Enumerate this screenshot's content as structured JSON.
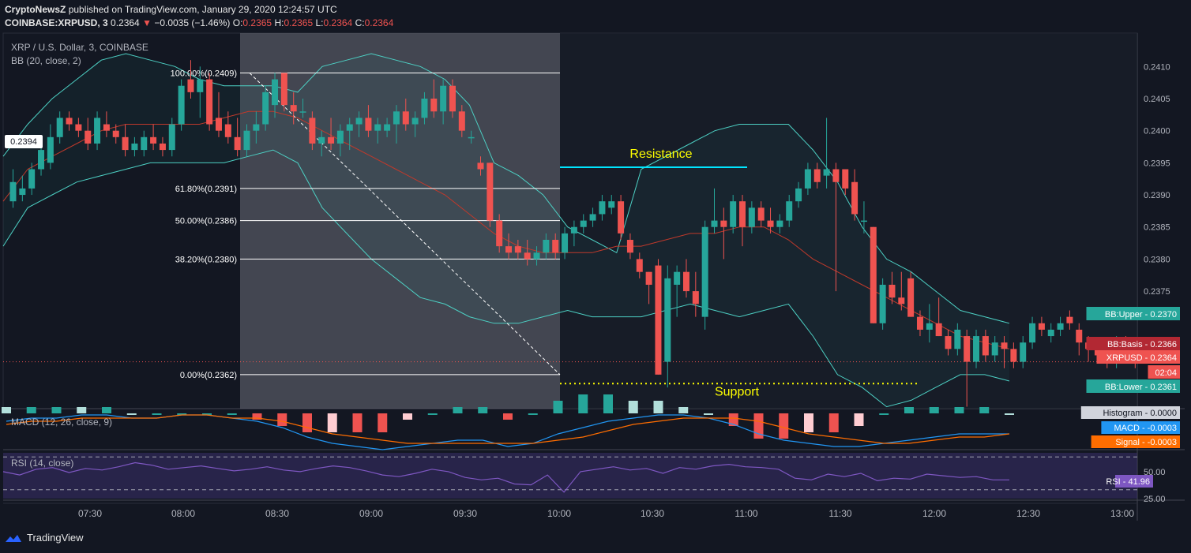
{
  "header": {
    "publisher": "CryptoNewsZ",
    "published_text": "published on TradingView.com, January 29, 2020 12:24:57 UTC",
    "symbol": "COINBASE:XRPUSD, 3",
    "last": "0.2364",
    "change": "−0.0035 (−1.46%)",
    "ohlc": {
      "o_label": "O:",
      "o": "0.2365",
      "h_label": "H:",
      "h": "0.2365",
      "l_label": "L:",
      "l": "0.2364",
      "c_label": "C:",
      "c": "0.2364"
    }
  },
  "main_pane": {
    "title": "XRP / U.S. Dollar, 3, COINBASE",
    "indicator": "BB (20, close, 2)",
    "left_price_tag": "0.2394"
  },
  "macd_pane": {
    "title": "MACD (12, 26, close, 9)"
  },
  "rsi_pane": {
    "title": "RSI (14, close)"
  },
  "footer": {
    "brand": "TradingView"
  },
  "colors": {
    "background": "#131722",
    "up": "#26a69a",
    "down": "#ef5350",
    "bb_band": "#4dd0c4",
    "bb_basis": "#c0392b",
    "resistance": "#00e5ff",
    "support": "#ffff00",
    "annotation_text": "#ffff00",
    "macd_line": "#2196f3",
    "signal_line": "#ff6d00",
    "rsi": "#7e57c2"
  },
  "chart_data": {
    "type": "candlestick",
    "symbol": "COINBASE:XRPUSD",
    "interval": "3",
    "x_ticks": [
      "07:30",
      "08:00",
      "08:30",
      "09:00",
      "09:30",
      "10:00",
      "10:30",
      "11:00",
      "11:30",
      "12:00",
      "12:30",
      "13:00"
    ],
    "y_ticks": [
      "0.2410",
      "0.2405",
      "0.2400",
      "0.2395",
      "0.2390",
      "0.2385",
      "0.2380",
      "0.2375"
    ],
    "ylim": [
      0.23567,
      0.24152
    ],
    "grid": false,
    "ohlc": [
      [
        0.2389,
        0.2394,
        0.2388,
        0.2392
      ],
      [
        0.239,
        0.2393,
        0.2389,
        0.2391
      ],
      [
        0.2391,
        0.2395,
        0.239,
        0.2394
      ],
      [
        0.2394,
        0.2398,
        0.2393,
        0.2397
      ],
      [
        0.2395,
        0.2401,
        0.2394,
        0.2399
      ],
      [
        0.2399,
        0.2403,
        0.2398,
        0.2402
      ],
      [
        0.2402,
        0.2403,
        0.24,
        0.2401
      ],
      [
        0.2401,
        0.2402,
        0.2399,
        0.24
      ],
      [
        0.24,
        0.2402,
        0.2397,
        0.2398
      ],
      [
        0.2398,
        0.2403,
        0.2397,
        0.2402
      ],
      [
        0.2401,
        0.2403,
        0.2399,
        0.24
      ],
      [
        0.24,
        0.2401,
        0.2398,
        0.2399
      ],
      [
        0.2399,
        0.2401,
        0.2396,
        0.2397
      ],
      [
        0.2397,
        0.2399,
        0.2396,
        0.2398
      ],
      [
        0.2397,
        0.24,
        0.2396,
        0.2399
      ],
      [
        0.2399,
        0.2401,
        0.2397,
        0.2398
      ],
      [
        0.2398,
        0.2399,
        0.2396,
        0.2397
      ],
      [
        0.2397,
        0.2402,
        0.2396,
        0.2401
      ],
      [
        0.2401,
        0.2408,
        0.24,
        0.2407
      ],
      [
        0.2408,
        0.2411,
        0.2405,
        0.2406
      ],
      [
        0.2406,
        0.241,
        0.2402,
        0.2408
      ],
      [
        0.2408,
        0.2409,
        0.24,
        0.2401
      ],
      [
        0.2402,
        0.2406,
        0.2399,
        0.24
      ],
      [
        0.2401,
        0.2403,
        0.2398,
        0.2399
      ],
      [
        0.2399,
        0.2402,
        0.2396,
        0.2397
      ],
      [
        0.2397,
        0.2401,
        0.2396,
        0.24
      ],
      [
        0.24,
        0.2403,
        0.2398,
        0.2401
      ],
      [
        0.2401,
        0.2407,
        0.24,
        0.2406
      ],
      [
        0.2404,
        0.2409,
        0.2402,
        0.2408
      ],
      [
        0.2409,
        0.2409,
        0.2403,
        0.2404
      ],
      [
        0.2404,
        0.2406,
        0.2401,
        0.2403
      ],
      [
        0.2403,
        0.2405,
        0.2402,
        0.2403
      ],
      [
        0.2402,
        0.2403,
        0.2397,
        0.2398
      ],
      [
        0.2398,
        0.24,
        0.2396,
        0.2399
      ],
      [
        0.2399,
        0.2402,
        0.2397,
        0.2398
      ],
      [
        0.2398,
        0.2401,
        0.2396,
        0.24
      ],
      [
        0.24,
        0.2402,
        0.2397,
        0.2401
      ],
      [
        0.2401,
        0.2403,
        0.2399,
        0.2402
      ],
      [
        0.2402,
        0.2404,
        0.2399,
        0.24
      ],
      [
        0.24,
        0.2402,
        0.2398,
        0.2401
      ],
      [
        0.24,
        0.2402,
        0.2399,
        0.2401
      ],
      [
        0.2401,
        0.2404,
        0.2398,
        0.2403
      ],
      [
        0.2403,
        0.2405,
        0.24,
        0.2401
      ],
      [
        0.2401,
        0.2403,
        0.2399,
        0.2402
      ],
      [
        0.2402,
        0.2406,
        0.2401,
        0.2405
      ],
      [
        0.2405,
        0.2408,
        0.2402,
        0.2403
      ],
      [
        0.2403,
        0.2408,
        0.2401,
        0.2407
      ],
      [
        0.2407,
        0.2408,
        0.2402,
        0.2403
      ],
      [
        0.2403,
        0.2404,
        0.2399,
        0.24
      ],
      [
        0.2399,
        0.24,
        0.2398,
        0.2399
      ],
      [
        0.2395,
        0.2396,
        0.2393,
        0.2394
      ],
      [
        0.2395,
        0.2395,
        0.2385,
        0.2386
      ],
      [
        0.2386,
        0.2387,
        0.2381,
        0.2382
      ],
      [
        0.2382,
        0.2384,
        0.238,
        0.2381
      ],
      [
        0.2382,
        0.2383,
        0.238,
        0.2381
      ],
      [
        0.2381,
        0.2383,
        0.2379,
        0.238
      ],
      [
        0.238,
        0.2382,
        0.2379,
        0.2381
      ],
      [
        0.2381,
        0.2384,
        0.238,
        0.2383
      ],
      [
        0.2383,
        0.2384,
        0.238,
        0.2381
      ],
      [
        0.2381,
        0.2385,
        0.238,
        0.2384
      ],
      [
        0.2384,
        0.2386,
        0.2382,
        0.2385
      ],
      [
        0.2385,
        0.2387,
        0.2384,
        0.2386
      ],
      [
        0.2386,
        0.2388,
        0.2385,
        0.2387
      ],
      [
        0.2387,
        0.239,
        0.2386,
        0.2389
      ],
      [
        0.2388,
        0.239,
        0.2387,
        0.2389
      ],
      [
        0.2389,
        0.239,
        0.2383,
        0.2384
      ],
      [
        0.2383,
        0.2384,
        0.238,
        0.2381
      ],
      [
        0.238,
        0.2381,
        0.2377,
        0.2378
      ],
      [
        0.2378,
        0.2378,
        0.2373,
        0.2376
      ],
      [
        0.2379,
        0.238,
        0.2362,
        0.2362
      ],
      [
        0.2364,
        0.2379,
        0.236,
        0.2377
      ],
      [
        0.2376,
        0.2379,
        0.2371,
        0.2378
      ],
      [
        0.2378,
        0.238,
        0.2374,
        0.2375
      ],
      [
        0.2375,
        0.2378,
        0.2371,
        0.2373
      ],
      [
        0.2371,
        0.2386,
        0.2369,
        0.2385
      ],
      [
        0.2385,
        0.2391,
        0.2384,
        0.2386
      ],
      [
        0.2386,
        0.2388,
        0.238,
        0.2385
      ],
      [
        0.2385,
        0.239,
        0.2384,
        0.2389
      ],
      [
        0.2389,
        0.239,
        0.2382,
        0.2385
      ],
      [
        0.2385,
        0.2389,
        0.2384,
        0.2388
      ],
      [
        0.2388,
        0.2389,
        0.2385,
        0.2386
      ],
      [
        0.2386,
        0.2388,
        0.2384,
        0.2385
      ],
      [
        0.2385,
        0.2387,
        0.2384,
        0.2386
      ],
      [
        0.2386,
        0.239,
        0.2385,
        0.2389
      ],
      [
        0.2389,
        0.2392,
        0.2388,
        0.2391
      ],
      [
        0.2391,
        0.2395,
        0.239,
        0.2394
      ],
      [
        0.2394,
        0.2395,
        0.2391,
        0.2392
      ],
      [
        0.2393,
        0.2402,
        0.2391,
        0.2394
      ],
      [
        0.2394,
        0.2395,
        0.2375,
        0.2392
      ],
      [
        0.2394,
        0.2394,
        0.239,
        0.2391
      ],
      [
        0.2392,
        0.2394,
        0.2386,
        0.2387
      ],
      [
        0.2386,
        0.2389,
        0.2384,
        0.2386
      ],
      [
        0.2385,
        0.2385,
        0.237,
        0.237
      ],
      [
        0.237,
        0.2377,
        0.2369,
        0.2376
      ],
      [
        0.2376,
        0.2378,
        0.2373,
        0.2374
      ],
      [
        0.2374,
        0.2378,
        0.2372,
        0.2373
      ],
      [
        0.2377,
        0.2378,
        0.2371,
        0.2371
      ],
      [
        0.2371,
        0.2372,
        0.2368,
        0.2369
      ],
      [
        0.2369,
        0.2373,
        0.2367,
        0.237
      ],
      [
        0.237,
        0.2374,
        0.2368,
        0.2368
      ],
      [
        0.2368,
        0.2369,
        0.2365,
        0.2366
      ],
      [
        0.2366,
        0.237,
        0.2365,
        0.2369
      ],
      [
        0.2368,
        0.2369,
        0.2357,
        0.2364
      ],
      [
        0.2364,
        0.2369,
        0.2363,
        0.2368
      ],
      [
        0.2368,
        0.2369,
        0.2364,
        0.2365
      ],
      [
        0.2365,
        0.2368,
        0.2364,
        0.2367
      ],
      [
        0.2367,
        0.2368,
        0.2363,
        0.2366
      ],
      [
        0.2366,
        0.2367,
        0.2363,
        0.2364
      ],
      [
        0.2364,
        0.2368,
        0.2363,
        0.2367
      ],
      [
        0.2367,
        0.2371,
        0.2366,
        0.237
      ],
      [
        0.237,
        0.2371,
        0.2368,
        0.2369
      ],
      [
        0.2368,
        0.237,
        0.2367,
        0.2369
      ],
      [
        0.2369,
        0.2371,
        0.2368,
        0.237
      ],
      [
        0.2371,
        0.2372,
        0.2369,
        0.237
      ],
      [
        0.2369,
        0.237,
        0.2365,
        0.2367
      ],
      [
        0.2367,
        0.2368,
        0.2364,
        0.2366
      ],
      [
        0.2366,
        0.2367,
        0.2364,
        0.2365
      ],
      [
        0.2365,
        0.2366,
        0.2363,
        0.2364
      ],
      [
        0.2364,
        0.2368,
        0.2363,
        0.2367
      ],
      [
        0.2367,
        0.2368,
        0.2364,
        0.2365
      ],
      [
        0.2365,
        0.2366,
        0.2363,
        0.2364
      ],
      [
        0.2365,
        0.2366,
        0.2364,
        0.2364
      ]
    ],
    "bollinger": {
      "label": "BB (20, close, 2)",
      "upper": [
        0.2396,
        0.2401,
        0.2405,
        0.2408,
        0.2411,
        0.2412,
        0.2411,
        0.241,
        0.2408,
        0.2407,
        0.2407,
        0.2407,
        0.2406,
        0.241,
        0.2411,
        0.2412,
        0.2411,
        0.241,
        0.2408,
        0.2404,
        0.2395,
        0.2393,
        0.239,
        0.2385,
        0.2383,
        0.2381,
        0.2394,
        0.2396,
        0.2398,
        0.24,
        0.2401,
        0.2401,
        0.2401,
        0.2397,
        0.2392,
        0.2385,
        0.238,
        0.2378,
        0.2375,
        0.2372,
        0.2371,
        0.237
      ],
      "basis": [
        0.2389,
        0.2394,
        0.2396,
        0.2398,
        0.24,
        0.2401,
        0.2401,
        0.2401,
        0.2401,
        0.2402,
        0.2403,
        0.2403,
        0.2402,
        0.24,
        0.2398,
        0.2396,
        0.2394,
        0.2392,
        0.239,
        0.2387,
        0.2384,
        0.2382,
        0.2381,
        0.2381,
        0.2381,
        0.2382,
        0.2382,
        0.2383,
        0.2384,
        0.2384,
        0.2385,
        0.2385,
        0.2383,
        0.238,
        0.2378,
        0.2376,
        0.2374,
        0.2372,
        0.237,
        0.2368,
        0.2367,
        0.2366
      ],
      "lower": [
        0.2382,
        0.2388,
        0.239,
        0.2392,
        0.2393,
        0.2394,
        0.2395,
        0.2395,
        0.2395,
        0.2395,
        0.2396,
        0.2397,
        0.2395,
        0.2388,
        0.2384,
        0.238,
        0.2377,
        0.2374,
        0.2373,
        0.2371,
        0.237,
        0.237,
        0.2371,
        0.2372,
        0.2371,
        0.2371,
        0.2371,
        0.2372,
        0.2373,
        0.2372,
        0.2371,
        0.2372,
        0.2373,
        0.2368,
        0.2362,
        0.236,
        0.2357,
        0.2358,
        0.236,
        0.2362,
        0.2362,
        0.2361
      ]
    },
    "fibonacci": [
      {
        "level": "100.00%",
        "price": 0.2409,
        "label": "100.00%(0.2409)"
      },
      {
        "level": "61.80%",
        "price": 0.2391,
        "label": "61.80%(0.2391)"
      },
      {
        "level": "50.00%",
        "price": 0.2386,
        "label": "50.00%(0.2386)"
      },
      {
        "level": "38.20%",
        "price": 0.238,
        "label": "38.20%(0.2380)"
      },
      {
        "level": "0.00%",
        "price": 0.2362,
        "label": "0.00%(0.2362)"
      }
    ],
    "annotations": [
      {
        "text": "Resistance",
        "price": 0.23943
      },
      {
        "text": "Support",
        "price": 0.23606
      }
    ],
    "price_scale_tags": [
      {
        "label": "BB:Upper - 0.2370",
        "price": 0.237
      },
      {
        "label": "BB:Basis - 0.2366",
        "price": 0.2366
      },
      {
        "label": "XRPUSD - 0.2364",
        "price": 0.2364
      },
      {
        "label": "02:04",
        "price": 0.2362
      },
      {
        "label": "BB:Lower - 0.2361",
        "price": 0.2361
      }
    ],
    "macd": {
      "label": "MACD (12, 26, close, 9)",
      "tags": [
        {
          "label": "Histogram - 0.0000"
        },
        {
          "label": "MACD - -0.0003"
        },
        {
          "label": "Signal - -0.0003"
        }
      ],
      "macd": [
        0.0001,
        0.0002,
        0.0002,
        0.0003,
        0.0003,
        0.0002,
        0.0002,
        0.0003,
        0.0003,
        0.0002,
        0.0001,
        -0.0001,
        -0.0004,
        -0.0006,
        -0.0007,
        -0.0008,
        -0.0007,
        -0.0006,
        -0.0005,
        -0.0005,
        -0.0007,
        -0.0006,
        -0.0003,
        -0.0001,
        0.0001,
        0.0002,
        0.0003,
        0.0003,
        0.0002,
        0.0,
        -0.0003,
        -0.0005,
        -0.0006,
        -0.0007,
        -0.0007,
        -0.0006,
        -0.0005,
        -0.0004,
        -0.0003,
        -0.0003,
        -0.0003
      ],
      "signal": [
        0.0,
        0.0001,
        0.0001,
        0.0002,
        0.0002,
        0.0002,
        0.0002,
        0.0003,
        0.0003,
        0.0002,
        0.0002,
        0.0001,
        -0.0001,
        -0.0003,
        -0.0004,
        -0.0005,
        -0.0006,
        -0.0006,
        -0.0006,
        -0.0006,
        -0.0006,
        -0.0006,
        -0.0005,
        -0.0004,
        -0.0002,
        0.0,
        0.0001,
        0.0002,
        0.0002,
        0.0002,
        0.0001,
        -0.0001,
        -0.0003,
        -0.0004,
        -0.0005,
        -0.0006,
        -0.0006,
        -0.0005,
        -0.0004,
        -0.0004,
        -0.0003
      ]
    },
    "rsi": {
      "label": "RSI (14, close)",
      "levels": [
        "50.00",
        "25.00"
      ],
      "tag": "RSI - 41.96",
      "values": [
        52,
        48,
        55,
        57,
        51,
        56,
        54,
        58,
        63,
        60,
        55,
        57,
        59,
        56,
        53,
        55,
        58,
        54,
        52,
        56,
        59,
        57,
        53,
        48,
        46,
        50,
        55,
        52,
        45,
        42,
        44,
        37,
        36,
        48,
        27,
        52,
        55,
        58,
        54,
        56,
        50,
        57,
        55,
        59,
        61,
        58,
        57,
        55,
        44,
        42,
        49,
        46,
        50,
        41,
        44,
        43,
        49,
        47,
        45,
        46,
        42,
        42
      ]
    }
  }
}
